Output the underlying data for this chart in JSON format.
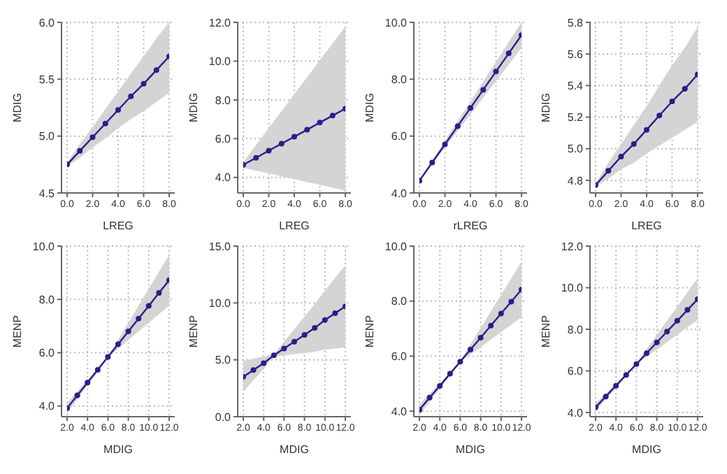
{
  "chart_data": [
    {
      "type": "line",
      "xlabel": "LREG",
      "ylabel": "MDIG",
      "x": [
        0,
        1,
        2,
        3,
        4,
        5,
        6,
        7,
        8
      ],
      "xlim": [
        0,
        8
      ],
      "xticks": [
        {
          "value": 0,
          "label": "0.0"
        },
        {
          "value": 2,
          "label": "2.0"
        },
        {
          "value": 4,
          "label": "4.0"
        },
        {
          "value": 6,
          "label": "6.0"
        },
        {
          "value": 8,
          "label": "8.0"
        }
      ],
      "ylim": [
        4.5,
        6.0
      ],
      "yticks": [
        {
          "value": 4.5,
          "label": "4.5"
        },
        {
          "value": 5,
          "label": "5.0"
        },
        {
          "value": 5.5,
          "label": "5.5"
        },
        {
          "value": 6,
          "label": "6.0"
        }
      ],
      "grid": true,
      "marker": "circle",
      "series": [
        {
          "color": "#2b1d8c",
          "values": [
            4.75,
            4.87,
            4.99,
            5.11,
            5.23,
            5.35,
            5.46,
            5.58,
            5.7
          ],
          "lower": [
            4.73,
            4.81,
            4.9,
            4.98,
            5.07,
            5.15,
            5.22,
            5.3,
            5.38
          ],
          "upper": [
            4.77,
            4.93,
            5.08,
            5.24,
            5.39,
            5.55,
            5.7,
            5.86,
            6.0
          ]
        }
      ]
    },
    {
      "type": "line",
      "xlabel": "LREG",
      "ylabel": "MDIG",
      "x": [
        0,
        1,
        2,
        3,
        4,
        5,
        6,
        7,
        8
      ],
      "xlim": [
        0,
        8
      ],
      "xticks": [
        {
          "value": 0,
          "label": "0.0"
        },
        {
          "value": 2,
          "label": "2.0"
        },
        {
          "value": 4,
          "label": "4.0"
        },
        {
          "value": 6,
          "label": "6.0"
        },
        {
          "value": 8,
          "label": "8.0"
        }
      ],
      "ylim": [
        3.2,
        12
      ],
      "yticks": [
        {
          "value": 4,
          "label": "4.0"
        },
        {
          "value": 6,
          "label": "6.0"
        },
        {
          "value": 8,
          "label": "8.0"
        },
        {
          "value": 10,
          "label": "10.0"
        },
        {
          "value": 12,
          "label": "12.0"
        }
      ],
      "grid": true,
      "marker": "circle",
      "series": [
        {
          "color": "#2b1d8c",
          "values": [
            4.65,
            5.01,
            5.38,
            5.74,
            6.1,
            6.46,
            6.83,
            7.19,
            7.55
          ],
          "lower": [
            4.5,
            4.35,
            4.21,
            4.06,
            3.91,
            3.76,
            3.62,
            3.47,
            3.32
          ],
          "upper": [
            4.8,
            5.67,
            6.55,
            7.42,
            8.29,
            9.16,
            10.04,
            10.91,
            11.78
          ]
        }
      ]
    },
    {
      "type": "line",
      "xlabel": "rLREG",
      "ylabel": "MDIG",
      "x": [
        0,
        1,
        2,
        3,
        4,
        5,
        6,
        7,
        8
      ],
      "xlim": [
        0,
        8
      ],
      "xticks": [
        {
          "value": 0,
          "label": "0.0"
        },
        {
          "value": 2,
          "label": "2.0"
        },
        {
          "value": 4,
          "label": "4.0"
        },
        {
          "value": 6,
          "label": "6.0"
        },
        {
          "value": 8,
          "label": "8.0"
        }
      ],
      "ylim": [
        4,
        10
      ],
      "yticks": [
        {
          "value": 4,
          "label": "4.0"
        },
        {
          "value": 6,
          "label": "6.0"
        },
        {
          "value": 8,
          "label": "8.0"
        },
        {
          "value": 10,
          "label": "10.0"
        }
      ],
      "grid": true,
      "marker": "circle",
      "series": [
        {
          "color": "#2b1d8c",
          "values": [
            4.43,
            5.07,
            5.71,
            6.35,
            6.99,
            7.63,
            8.27,
            8.91,
            9.55
          ],
          "lower": [
            4.42,
            5.01,
            5.59,
            6.18,
            6.76,
            7.35,
            7.93,
            8.52,
            9.1
          ],
          "upper": [
            4.44,
            5.14,
            5.83,
            6.53,
            7.22,
            7.92,
            8.61,
            9.31,
            10.0
          ]
        }
      ]
    },
    {
      "type": "line",
      "xlabel": "LREG",
      "ylabel": "MDIG",
      "x": [
        0,
        1,
        2,
        3,
        4,
        5,
        6,
        7,
        8
      ],
      "xlim": [
        0,
        8
      ],
      "xticks": [
        {
          "value": 0,
          "label": "0.0"
        },
        {
          "value": 2,
          "label": "2.0"
        },
        {
          "value": 4,
          "label": "4.0"
        },
        {
          "value": 6,
          "label": "6.0"
        },
        {
          "value": 8,
          "label": "8.0"
        }
      ],
      "ylim": [
        4.72,
        5.8
      ],
      "yticks": [
        4.8,
        {
          "value": 5,
          "label": "5.0"
        },
        5.2,
        5.4,
        5.6,
        5.8
      ],
      "grid": true,
      "marker": "circle",
      "series": [
        {
          "color": "#2b1d8c",
          "values": [
            4.77,
            4.86,
            4.95,
            5.03,
            5.12,
            5.21,
            5.3,
            5.38,
            5.47
          ],
          "lower": [
            4.76,
            4.81,
            4.87,
            4.91,
            4.97,
            5.02,
            5.07,
            5.12,
            5.17
          ],
          "upper": [
            4.78,
            4.91,
            5.03,
            5.15,
            5.27,
            5.4,
            5.53,
            5.64,
            5.77
          ]
        }
      ]
    },
    {
      "type": "line",
      "xlabel": "MDIG",
      "ylabel": "MENP",
      "x": [
        2,
        3,
        4,
        5,
        6,
        7,
        8,
        9,
        10,
        11,
        12
      ],
      "xlim": [
        2,
        12
      ],
      "xticks": [
        {
          "value": 2,
          "label": "2.0"
        },
        {
          "value": 4,
          "label": "4.0"
        },
        {
          "value": 6,
          "label": "6.0"
        },
        {
          "value": 8,
          "label": "8.0"
        },
        {
          "value": 10,
          "label": "10.0"
        },
        {
          "value": 12,
          "label": "12.0"
        }
      ],
      "ylim": [
        3.6,
        10
      ],
      "yticks": [
        {
          "value": 4,
          "label": "4.0"
        },
        {
          "value": 6,
          "label": "6.0"
        },
        {
          "value": 8,
          "label": "8.0"
        },
        {
          "value": 10,
          "label": "10.0"
        }
      ],
      "grid": true,
      "marker": "circle",
      "series": [
        {
          "color": "#2b1d8c",
          "values": [
            3.92,
            4.4,
            4.88,
            5.36,
            5.84,
            6.32,
            6.8,
            7.28,
            7.76,
            8.24,
            8.72
          ],
          "lower": [
            3.72,
            4.25,
            4.77,
            5.3,
            5.82,
            6.15,
            6.47,
            6.8,
            7.12,
            7.45,
            7.77
          ],
          "upper": [
            4.12,
            4.56,
            4.99,
            5.43,
            5.86,
            6.5,
            7.13,
            7.77,
            8.4,
            9.04,
            9.67
          ]
        }
      ]
    },
    {
      "type": "line",
      "xlabel": "MDIG",
      "ylabel": "MENP",
      "x": [
        2,
        3,
        4,
        5,
        6,
        7,
        8,
        9,
        10,
        11,
        12
      ],
      "xlim": [
        2,
        12
      ],
      "xticks": [
        {
          "value": 2,
          "label": "2.0"
        },
        {
          "value": 4,
          "label": "4.0"
        },
        {
          "value": 6,
          "label": "6.0"
        },
        {
          "value": 8,
          "label": "8.0"
        },
        {
          "value": 10,
          "label": "10.0"
        },
        {
          "value": 12,
          "label": "12.0"
        }
      ],
      "ylim": [
        0,
        15
      ],
      "yticks": [
        {
          "value": 0,
          "label": "0.0"
        },
        {
          "value": 5,
          "label": "5.0"
        },
        {
          "value": 10,
          "label": "10.0"
        },
        {
          "value": 15,
          "label": "15.0"
        }
      ],
      "grid": true,
      "marker": "circle",
      "series": [
        {
          "color": "#2b1d8c",
          "values": [
            3.5,
            4.1,
            4.7,
            5.4,
            6.0,
            6.6,
            7.2,
            7.8,
            8.5,
            9.1,
            9.7
          ],
          "lower": [
            2.2,
            3.2,
            4.2,
            5.3,
            5.4,
            5.5,
            5.6,
            5.7,
            5.9,
            6.0,
            6.1
          ],
          "upper": [
            4.9,
            5.1,
            5.3,
            5.5,
            6.6,
            7.7,
            8.8,
            9.9,
            11.1,
            12.2,
            13.3
          ]
        }
      ]
    },
    {
      "type": "line",
      "xlabel": "MDIG",
      "ylabel": "MENP",
      "x": [
        2,
        3,
        4,
        5,
        6,
        7,
        8,
        9,
        10,
        11,
        12
      ],
      "xlim": [
        2,
        12
      ],
      "xticks": [
        {
          "value": 2,
          "label": "2.0"
        },
        {
          "value": 4,
          "label": "4.0"
        },
        {
          "value": 6,
          "label": "6.0"
        },
        {
          "value": 8,
          "label": "8.0"
        },
        {
          "value": 10,
          "label": "10.0"
        },
        {
          "value": 12,
          "label": "12.0"
        }
      ],
      "ylim": [
        3.8,
        10
      ],
      "yticks": [
        {
          "value": 4,
          "label": "4.0"
        },
        {
          "value": 6,
          "label": "6.0"
        },
        {
          "value": 8,
          "label": "8.0"
        },
        {
          "value": 10,
          "label": "10.0"
        }
      ],
      "grid": true,
      "marker": "circle",
      "series": [
        {
          "color": "#2b1d8c",
          "values": [
            4.05,
            4.49,
            4.92,
            5.36,
            5.8,
            6.24,
            6.67,
            7.11,
            7.55,
            7.98,
            8.42
          ],
          "lower": [
            3.85,
            4.34,
            4.82,
            5.31,
            5.78,
            6.06,
            6.32,
            6.6,
            6.87,
            7.14,
            7.42
          ],
          "upper": [
            4.25,
            4.64,
            5.02,
            5.41,
            5.82,
            6.43,
            7.02,
            7.63,
            8.23,
            8.83,
            9.42
          ]
        }
      ]
    },
    {
      "type": "line",
      "xlabel": "MDIG",
      "ylabel": "MENP",
      "x": [
        2,
        3,
        4,
        5,
        6,
        7,
        8,
        9,
        10,
        11,
        12
      ],
      "xlim": [
        2,
        12
      ],
      "xticks": [
        {
          "value": 2,
          "label": "2.0"
        },
        {
          "value": 4,
          "label": "4.0"
        },
        {
          "value": 6,
          "label": "6.0"
        },
        {
          "value": 8,
          "label": "8.0"
        },
        {
          "value": 10,
          "label": "10.0"
        },
        {
          "value": 12,
          "label": "12.0"
        }
      ],
      "ylim": [
        3.8,
        12
      ],
      "yticks": [
        {
          "value": 4,
          "label": "4.0"
        },
        {
          "value": 6,
          "label": "6.0"
        },
        {
          "value": 8,
          "label": "8.0"
        },
        {
          "value": 10,
          "label": "10.0"
        },
        {
          "value": 12,
          "label": "12.0"
        }
      ],
      "grid": true,
      "marker": "circle",
      "series": [
        {
          "color": "#2b1d8c",
          "values": [
            4.25,
            4.77,
            5.29,
            5.81,
            6.33,
            6.85,
            7.37,
            7.89,
            8.41,
            8.93,
            9.45
          ],
          "lower": [
            4.05,
            4.62,
            5.19,
            5.76,
            6.31,
            6.67,
            7.02,
            7.38,
            7.73,
            8.09,
            8.45
          ],
          "upper": [
            4.45,
            4.92,
            5.39,
            5.86,
            6.35,
            7.04,
            7.72,
            8.41,
            9.09,
            9.78,
            10.45
          ]
        }
      ]
    }
  ]
}
